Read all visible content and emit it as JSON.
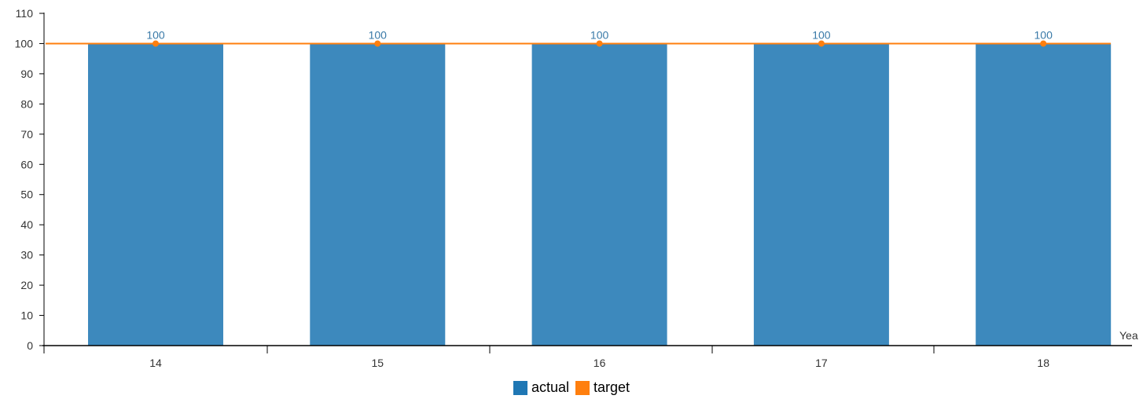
{
  "chart_data": {
    "type": "bar",
    "categories": [
      "14",
      "15",
      "16",
      "17",
      "18"
    ],
    "series": [
      {
        "name": "actual",
        "kind": "bar",
        "values": [
          100,
          100,
          100,
          100,
          100
        ],
        "color": "#1f77b4"
      },
      {
        "name": "target",
        "kind": "line",
        "values": [
          100,
          100,
          100,
          100,
          100
        ],
        "color": "#ff7f0e"
      }
    ],
    "data_labels": [
      "100",
      "100",
      "100",
      "100",
      "100"
    ],
    "data_label_color": "#3a7aa8",
    "xunit": "Yea",
    "ylim": [
      0,
      110
    ],
    "yticks": [
      "0",
      "10",
      "20",
      "30",
      "40",
      "50",
      "60",
      "70",
      "80",
      "90",
      "100",
      "110"
    ],
    "grid": false,
    "legend_position": "bottom-center"
  }
}
